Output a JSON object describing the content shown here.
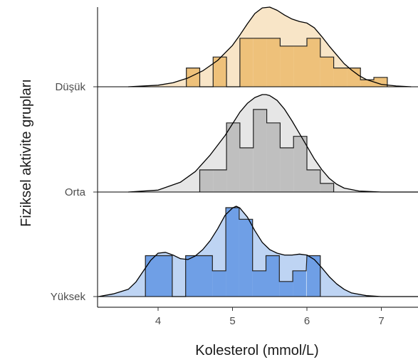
{
  "chart_data": {
    "type": "ridgeline",
    "xlabel": "Kolesterol (mmol/L)",
    "ylabel": "Fiziksel aktivite grupları",
    "xlim": [
      3.2,
      7.5
    ],
    "x_ticks": [
      4,
      5,
      6,
      7
    ],
    "y_categories": [
      "Yüksek",
      "Orta",
      "Düşük"
    ],
    "grid": false,
    "bin_width": 0.18,
    "series": [
      {
        "name": "Yüksek",
        "fill_color": "#6f9fe6",
        "density_color": "#a8c6ef",
        "density": {
          "x": [
            3.2,
            3.4,
            3.6,
            3.7,
            3.8,
            3.9,
            4.0,
            4.1,
            4.2,
            4.3,
            4.4,
            4.5,
            4.6,
            4.7,
            4.8,
            4.9,
            5.0,
            5.05,
            5.1,
            5.2,
            5.3,
            5.4,
            5.5,
            5.6,
            5.7,
            5.8,
            5.9,
            6.0,
            6.1,
            6.2,
            6.3,
            6.4,
            6.5,
            6.6,
            6.8,
            7.0,
            7.5
          ],
          "y": [
            0,
            0.03,
            0.08,
            0.16,
            0.28,
            0.4,
            0.48,
            0.49,
            0.46,
            0.42,
            0.41,
            0.45,
            0.52,
            0.62,
            0.75,
            0.9,
            0.98,
            1.0,
            0.98,
            0.88,
            0.73,
            0.6,
            0.52,
            0.48,
            0.46,
            0.46,
            0.47,
            0.46,
            0.41,
            0.32,
            0.22,
            0.14,
            0.08,
            0.04,
            0.01,
            0,
            0
          ]
        },
        "histogram": {
          "bin_starts": [
            3.83,
            4.01,
            4.19,
            4.37,
            4.55,
            4.73,
            4.91,
            5.09,
            5.27,
            5.45,
            5.63,
            5.81,
            6.0
          ],
          "heights": [
            0.46,
            0.46,
            0.0,
            0.46,
            0.46,
            0.29,
            1.0,
            0.87,
            0.29,
            0.46,
            0.17,
            0.29,
            0.46
          ]
        }
      },
      {
        "name": "Orta",
        "fill_color": "#bfbfbf",
        "density_color": "#dedede",
        "density": {
          "x": [
            3.6,
            4.0,
            4.3,
            4.5,
            4.7,
            4.9,
            5.0,
            5.1,
            5.2,
            5.3,
            5.4,
            5.45,
            5.5,
            5.6,
            5.7,
            5.8,
            5.9,
            6.0,
            6.1,
            6.2,
            6.3,
            6.4,
            6.5,
            6.7,
            7.0,
            7.5
          ],
          "y": [
            0,
            0.02,
            0.1,
            0.21,
            0.38,
            0.58,
            0.7,
            0.82,
            0.91,
            0.97,
            1.0,
            1.0,
            0.99,
            0.94,
            0.85,
            0.73,
            0.6,
            0.47,
            0.34,
            0.23,
            0.14,
            0.08,
            0.04,
            0.01,
            0,
            0
          ]
        },
        "histogram": {
          "bin_starts": [
            4.56,
            4.74,
            4.92,
            5.1,
            5.28,
            5.46,
            5.64,
            5.82,
            6.0,
            6.18
          ],
          "heights": [
            0.23,
            0.23,
            0.72,
            0.46,
            0.86,
            0.72,
            0.46,
            0.58,
            0.23,
            0.09
          ]
        }
      },
      {
        "name": "Düşük",
        "fill_color": "#eec17a",
        "density_color": "#f6dcb4",
        "density": {
          "x": [
            3.6,
            4.0,
            4.2,
            4.4,
            4.6,
            4.8,
            5.0,
            5.1,
            5.2,
            5.3,
            5.4,
            5.5,
            5.6,
            5.7,
            5.8,
            5.9,
            6.0,
            6.1,
            6.2,
            6.3,
            6.4,
            6.5,
            6.6,
            6.7,
            6.8,
            7.0,
            7.2,
            7.4
          ],
          "y": [
            0,
            0.02,
            0.05,
            0.11,
            0.2,
            0.33,
            0.52,
            0.65,
            0.79,
            0.92,
            0.99,
            1.0,
            0.96,
            0.9,
            0.85,
            0.82,
            0.8,
            0.74,
            0.63,
            0.51,
            0.4,
            0.29,
            0.21,
            0.14,
            0.09,
            0.03,
            0.01,
            0
          ]
        },
        "histogram": {
          "bin_starts": [
            4.38,
            4.56,
            4.74,
            4.92,
            5.1,
            5.28,
            5.46,
            5.64,
            5.82,
            6.0,
            6.18,
            6.36,
            6.54,
            6.72,
            6.9
          ],
          "heights": [
            0.24,
            0.0,
            0.38,
            0.0,
            0.62,
            0.62,
            0.62,
            0.52,
            0.52,
            0.62,
            0.38,
            0.24,
            0.24,
            0.09,
            0.12
          ]
        }
      }
    ]
  }
}
